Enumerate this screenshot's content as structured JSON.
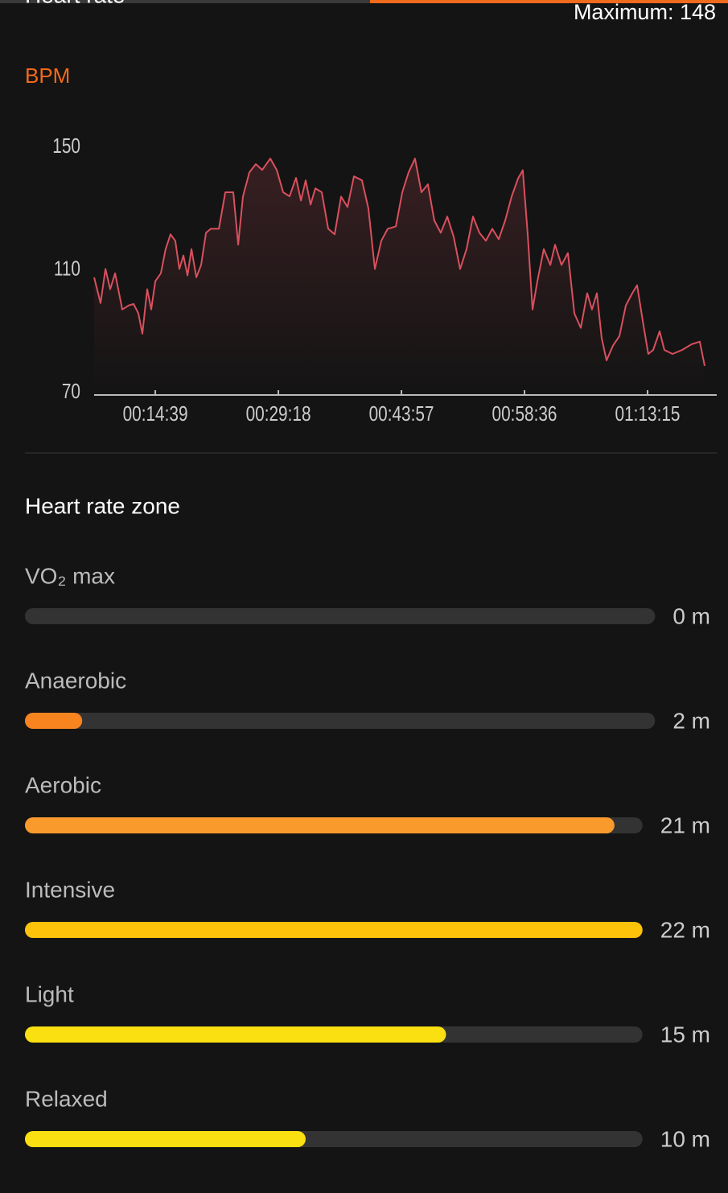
{
  "header": {
    "title": "Heart rate",
    "maximum": "Maximum: 148"
  },
  "chart_data": {
    "type": "line",
    "y_label": "BPM",
    "color": "#d9505e",
    "x": [
      442,
      488,
      523,
      557,
      592,
      643,
      689,
      724,
      758,
      787,
      821,
      850,
      879,
      919,
      953,
      988,
      1022,
      1051,
      1080,
      1109,
      1137,
      1172,
      1206,
      1241,
      1275,
      1333,
      1379,
      1436,
      1471,
      1505,
      1551,
      1597,
      1643,
      1700,
      1746,
      1792,
      1838,
      1884,
      1919,
      1953,
      1988,
      2022,
      2068,
      2114,
      2160,
      2206,
      2252,
      2298,
      2355,
      2401,
      2447,
      2493,
      2539,
      2597,
      2643,
      2688,
      2734,
      2780,
      2826,
      2872,
      2918,
      2964,
      3010,
      3056,
      3102,
      3148,
      3194,
      3240,
      3286,
      3332,
      3378,
      3424,
      3470,
      3504,
      3539,
      3573,
      3608,
      3654,
      3700,
      3734,
      3780,
      3826,
      3872,
      3918,
      3964,
      3998,
      4033,
      4067,
      4102,
      4148,
      4194,
      4240,
      4286,
      4320,
      4366,
      4400,
      4435,
      4481,
      4515,
      4573,
      4642,
      4711,
      4768,
      4803
    ],
    "values": [
      107.6,
      99.2,
      110.3,
      103.7,
      108.9,
      97.1,
      98.4,
      98.9,
      95.8,
      89.2,
      103.7,
      97.1,
      106.3,
      108.9,
      116.8,
      121.6,
      119.5,
      110.3,
      114.7,
      108.2,
      116.8,
      107.6,
      111.6,
      122.1,
      123.4,
      123.4,
      135.3,
      135.3,
      118.2,
      133.9,
      141.8,
      144.5,
      142.6,
      146.3,
      142.6,
      135.3,
      134,
      140,
      132.6,
      139.2,
      131.3,
      136.6,
      135.3,
      123.4,
      121.6,
      133.9,
      130.5,
      140.5,
      139.2,
      130,
      110.3,
      119.5,
      123.4,
      124.2,
      135.3,
      141.8,
      146.3,
      135.3,
      137.9,
      126.1,
      122.1,
      127.4,
      120.8,
      110.3,
      116.8,
      127.4,
      122.1,
      119.5,
      123.4,
      120,
      126.1,
      133.9,
      139.8,
      142.5,
      121.6,
      97.1,
      106.3,
      116.8,
      111.6,
      118.2,
      111.6,
      115.5,
      95.8,
      91.1,
      102.4,
      97.1,
      102.4,
      87.9,
      80.5,
      85.3,
      88.4,
      98.4,
      102.4,
      105,
      91.8,
      82.6,
      83.9,
      90,
      83.9,
      82.6,
      83.9,
      85.8,
      86.6,
      78.7
    ],
    "xlim": [
      442,
      4889
    ],
    "xticks": [
      {
        "value": 879,
        "label": "00:14:39"
      },
      {
        "value": 1758,
        "label": "00:29:18"
      },
      {
        "value": 2637,
        "label": "00:43:57"
      },
      {
        "value": 3516,
        "label": "00:58:36"
      },
      {
        "value": 4395,
        "label": "01:13:15"
      }
    ],
    "ylim": [
      70,
      150
    ],
    "yticks": [
      70,
      110,
      150
    ],
    "grid": false
  },
  "zones": {
    "title": "Heart rate zone",
    "items": [
      {
        "name": "VO₂ max",
        "value": 0,
        "value_label": "0 m",
        "color": "#f7841f"
      },
      {
        "name": "Anaerobic",
        "value": 2,
        "value_label": "2 m",
        "color": "#f7841f"
      },
      {
        "name": "Aerobic",
        "value": 21,
        "value_label": "21 m",
        "color": "#f89a2c"
      },
      {
        "name": "Intensive",
        "value": 22,
        "value_label": "22 m",
        "color": "#fdc20a"
      },
      {
        "name": "Light",
        "value": 15,
        "value_label": "15 m",
        "color": "#fbe011"
      },
      {
        "name": "Relaxed",
        "value": 10,
        "value_label": "10 m",
        "color": "#fbe011"
      }
    ]
  }
}
